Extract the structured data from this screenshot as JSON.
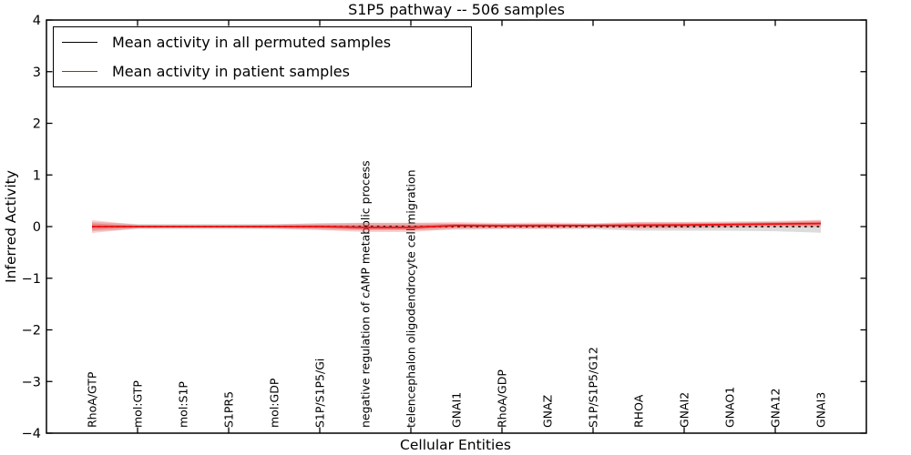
{
  "title": "S1P5 pathway -- 506 samples",
  "legend": {
    "items": [
      {
        "label": "Mean activity in all permuted samples",
        "color": "#000000",
        "style": "solid"
      },
      {
        "label": "Mean activity in patient samples",
        "color": "#ff0000",
        "style": "solid"
      }
    ],
    "position": "upper left"
  },
  "chart_data": {
    "type": "line",
    "title": "S1P5 pathway -- 506 samples",
    "xlabel": "Cellular Entities",
    "ylabel": "Inferred Activity",
    "ylim": [
      -4,
      4
    ],
    "xlim": [
      0,
      18
    ],
    "yticks": [
      -4,
      -3,
      -2,
      -1,
      0,
      1,
      2,
      3,
      4
    ],
    "xtick_step": 2,
    "grid": false,
    "categories": [
      "RhoA/GTP",
      "mol:GTP",
      "mol:S1P",
      "S1PR5",
      "mol:GDP",
      "S1P/S1P5/Gi",
      "negative regulation of cAMP metabolic process",
      "telencephalon oligodendrocyte cell migration",
      "GNAI1",
      "RhoA/GDP",
      "GNAZ",
      "S1P/S1P5/G12",
      "RHOA",
      "GNAI2",
      "GNAO1",
      "GNA12",
      "GNAI3"
    ],
    "series": [
      {
        "name": "Mean activity in all permuted samples",
        "color": "#000000",
        "line_style": "dotted",
        "values": [
          0,
          0,
          0,
          0,
          0,
          0,
          0,
          0,
          0,
          0,
          0,
          0,
          0,
          0,
          0,
          0,
          0
        ],
        "band_halfwidth": [
          0.09,
          0.05,
          0.05,
          0.05,
          0.05,
          0.06,
          0.07,
          0.07,
          0.06,
          0.05,
          0.05,
          0.05,
          0.08,
          0.08,
          0.08,
          0.09,
          0.12
        ],
        "band_color": "rgba(130,130,130,0.28)"
      },
      {
        "name": "Mean activity in patient samples",
        "color": "#ee1111",
        "line_style": "solid",
        "values": [
          0.0,
          0.0,
          0.0,
          0.0,
          0.0,
          0.0,
          -0.015,
          -0.015,
          0.02,
          0.015,
          0.02,
          0.02,
          0.025,
          0.03,
          0.04,
          0.05,
          0.06
        ],
        "band_halfwidth": [
          0.125,
          0.035,
          0.03,
          0.03,
          0.04,
          0.065,
          0.09,
          0.09,
          0.065,
          0.055,
          0.06,
          0.045,
          0.065,
          0.06,
          0.06,
          0.06,
          0.07
        ],
        "band_color": "rgba(255,30,30,0.22)",
        "band_inner_color": "rgba(255,30,30,0.30)"
      }
    ]
  }
}
